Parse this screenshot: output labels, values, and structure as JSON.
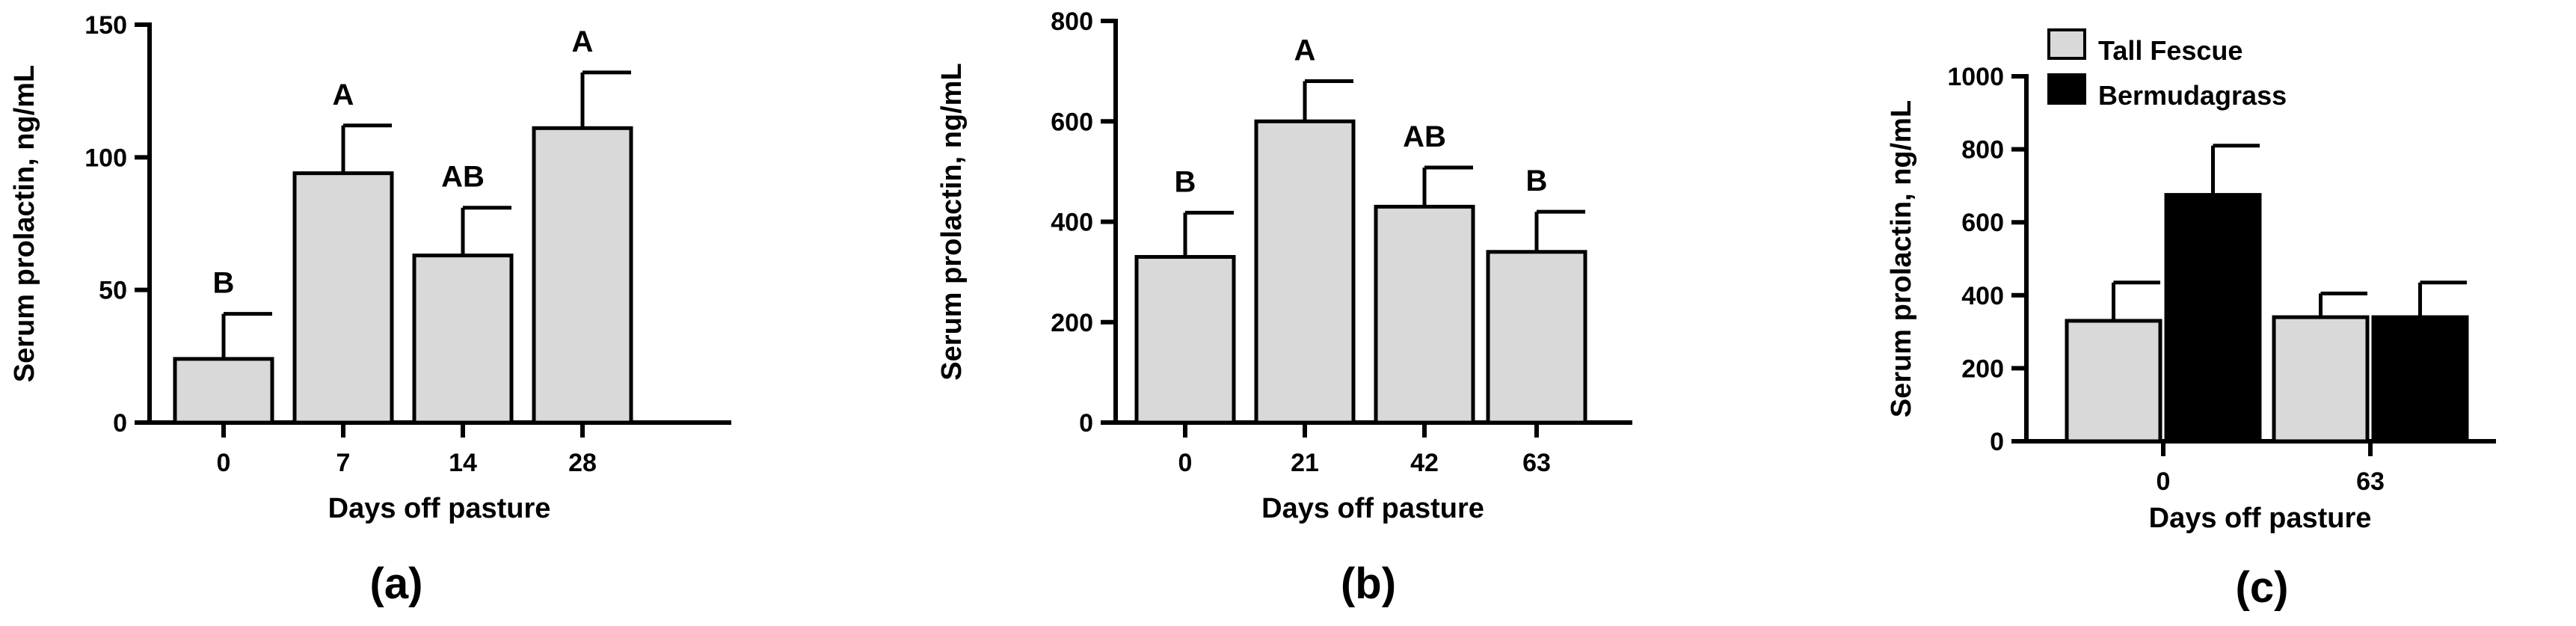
{
  "chart_data": [
    {
      "type": "bar",
      "panel_label": "(a)",
      "xlabel": "Days off pasture",
      "ylabel": "Serum prolactin, ng/mL",
      "ylim": [
        0,
        150
      ],
      "yticks": [
        0,
        50,
        100,
        150
      ],
      "categories": [
        "0",
        "7",
        "14",
        "28"
      ],
      "series": [
        {
          "values": [
            24,
            94,
            63,
            111
          ],
          "errors": [
            17,
            18,
            18,
            21
          ],
          "color": "#d9d9d9"
        }
      ],
      "annotations": [
        "B",
        "A",
        "AB",
        "A"
      ]
    },
    {
      "type": "bar",
      "panel_label": "(b)",
      "xlabel": "Days off pasture",
      "ylabel": "Serum prolactin, ng/mL",
      "ylim": [
        0,
        800
      ],
      "yticks": [
        0,
        200,
        400,
        600,
        800
      ],
      "categories": [
        "0",
        "21",
        "42",
        "63"
      ],
      "series": [
        {
          "values": [
            330,
            600,
            430,
            340
          ],
          "errors": [
            88,
            80,
            78,
            80
          ],
          "color": "#d9d9d9"
        }
      ],
      "annotations": [
        "B",
        "A",
        "AB",
        "B"
      ]
    },
    {
      "type": "bar",
      "panel_label": "(c)",
      "xlabel": "Days off pasture",
      "ylabel": "Serum prolactin, ng/mL",
      "ylim": [
        0,
        1000
      ],
      "yticks": [
        0,
        200,
        400,
        600,
        800,
        1000
      ],
      "categories": [
        "0",
        "63"
      ],
      "legend_position": "top-left",
      "series": [
        {
          "name": "Tall Fescue",
          "values": [
            330,
            340
          ],
          "errors": [
            105,
            65
          ],
          "color": "#d9d9d9"
        },
        {
          "name": "Bermudagrass",
          "values": [
            675,
            340
          ],
          "errors": [
            135,
            95
          ],
          "color": "#000000"
        }
      ]
    }
  ]
}
